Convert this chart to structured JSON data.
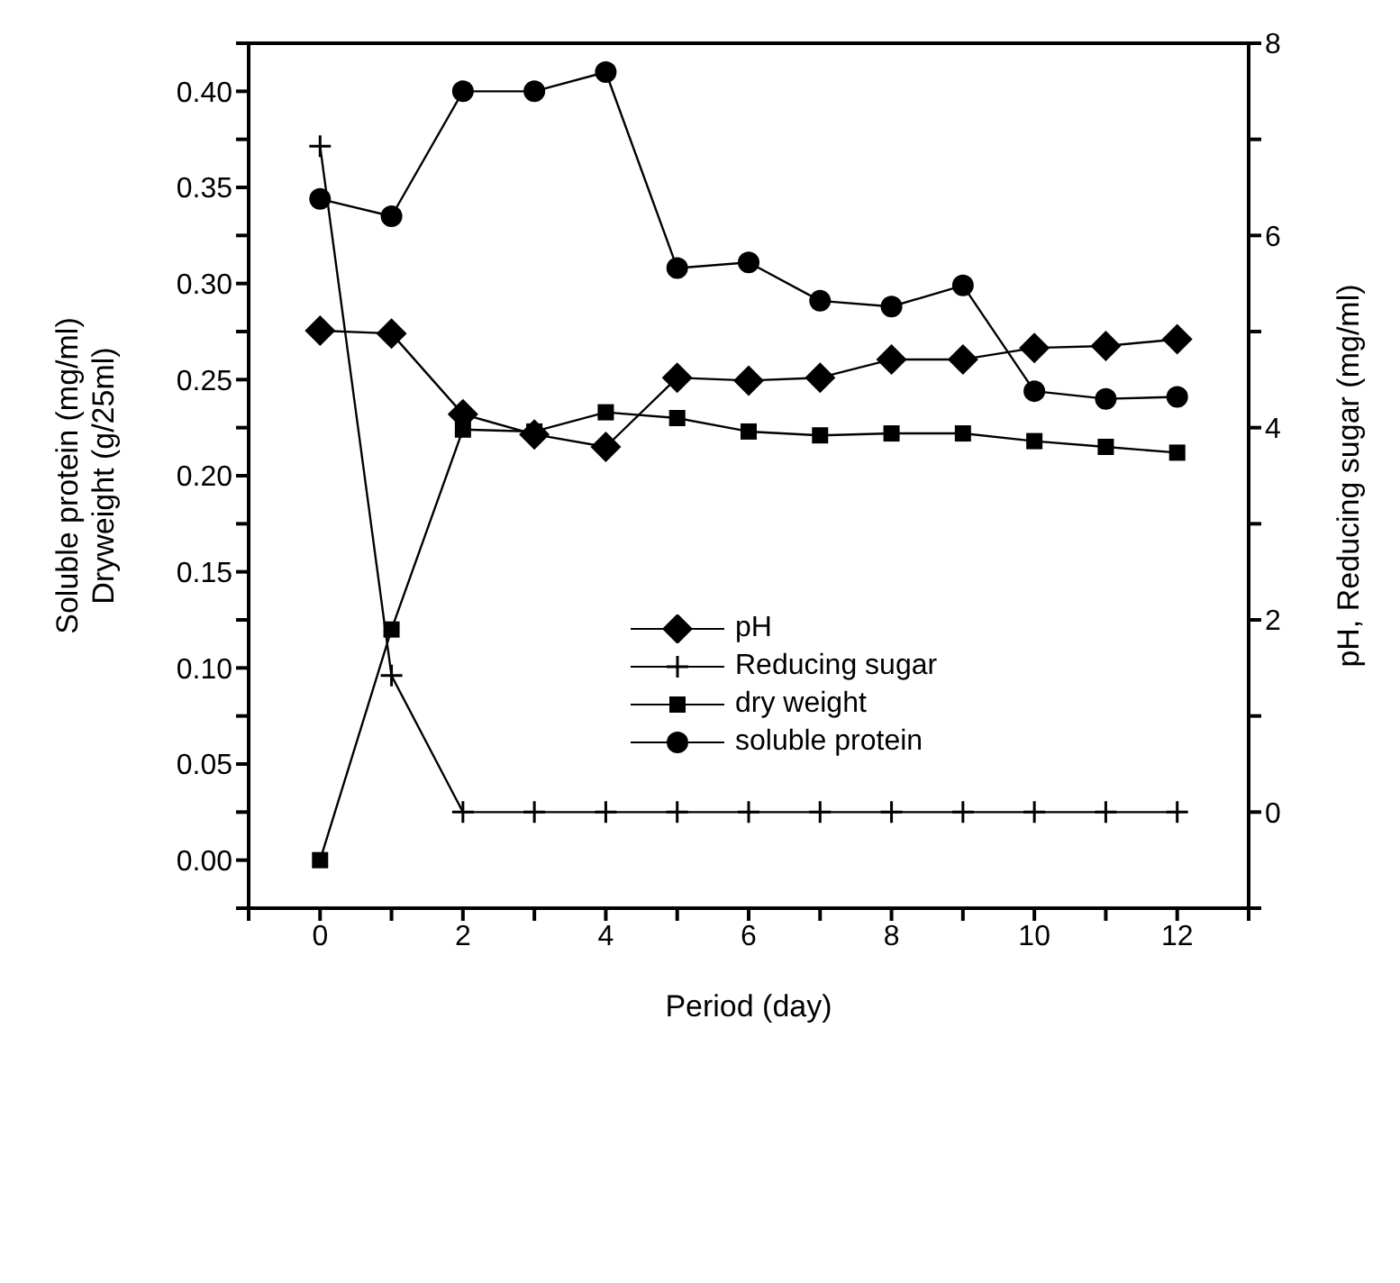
{
  "chart_data": {
    "type": "line",
    "xlabel": "Period (day)",
    "ylabel": "Soluble protein (mg/ml)\nDryweight (g/25ml)",
    "y2label": "pH, Reducing sugar (mg/ml)",
    "x": [
      0,
      1,
      2,
      3,
      4,
      5,
      6,
      7,
      8,
      9,
      10,
      11,
      12
    ],
    "series": [
      {
        "name": "pH",
        "color": "#000000",
        "marker": "diamond",
        "axis": "y2",
        "values": [
          5.01,
          4.98,
          4.14,
          3.93,
          3.8,
          4.52,
          4.49,
          4.52,
          4.71,
          4.71,
          4.83,
          4.85,
          4.92
        ]
      },
      {
        "name": "Reducing sugar",
        "color": "#000000",
        "marker": "cross",
        "axis": "y2",
        "values": [
          6.93,
          1.42,
          0,
          0,
          0,
          0,
          0,
          0,
          0,
          0,
          0,
          0,
          0
        ]
      },
      {
        "name": "dry weight",
        "color": "#000000",
        "marker": "square",
        "values": [
          0,
          0.12,
          0.224,
          0.223,
          0.233,
          0.23,
          0.223,
          0.221,
          0.222,
          0.222,
          0.218,
          0.215,
          0.212
        ]
      },
      {
        "name": "soluble protein",
        "color": "#000000",
        "marker": "circle",
        "values": [
          0.344,
          0.335,
          0.4,
          0.4,
          0.41,
          0.308,
          0.311,
          0.291,
          0.288,
          0.299,
          0.244,
          0.24,
          0.241
        ]
      }
    ],
    "xlim": [
      -1,
      13
    ],
    "xticks": [
      {
        "value": -1,
        "label": null
      },
      0,
      {
        "value": 1,
        "label": null
      },
      2,
      {
        "value": 3,
        "label": null
      },
      4,
      {
        "value": 5,
        "label": null
      },
      6,
      {
        "value": 7,
        "label": null
      },
      8,
      {
        "value": 9,
        "label": null
      },
      10,
      {
        "value": 11,
        "label": null
      },
      12,
      {
        "value": 13,
        "label": null
      }
    ],
    "ylim": [
      -0.025,
      0.425
    ],
    "yticks": [
      {
        "value": -0.025,
        "label": null
      },
      {
        "value": 0,
        "label": "0.00"
      },
      {
        "value": 0.025,
        "label": null
      },
      {
        "value": 0.05,
        "label": "0.05"
      },
      {
        "value": 0.075,
        "label": null
      },
      {
        "value": 0.1,
        "label": "0.10"
      },
      {
        "value": 0.125,
        "label": null
      },
      {
        "value": 0.15,
        "label": "0.15"
      },
      {
        "value": 0.175,
        "label": null
      },
      {
        "value": 0.2,
        "label": "0.20"
      },
      {
        "value": 0.225,
        "label": null
      },
      {
        "value": 0.25,
        "label": "0.25"
      },
      {
        "value": 0.275,
        "label": null
      },
      {
        "value": 0.3,
        "label": "0.30"
      },
      {
        "value": 0.325,
        "label": null
      },
      {
        "value": 0.35,
        "label": "0.35"
      },
      {
        "value": 0.375,
        "label": null
      },
      {
        "value": 0.4,
        "label": "0.40"
      },
      {
        "value": 0.425,
        "label": null
      }
    ],
    "y2lim": [
      -1,
      8
    ],
    "y2ticks": [
      {
        "value": -1,
        "label": null
      },
      0,
      {
        "value": 1,
        "label": null
      },
      2,
      {
        "value": 3,
        "label": null
      },
      4,
      {
        "value": 5,
        "label": null
      },
      6,
      {
        "value": 7,
        "label": null
      },
      8
    ],
    "legend": "center",
    "grid": false,
    "line_style": "solid"
  }
}
